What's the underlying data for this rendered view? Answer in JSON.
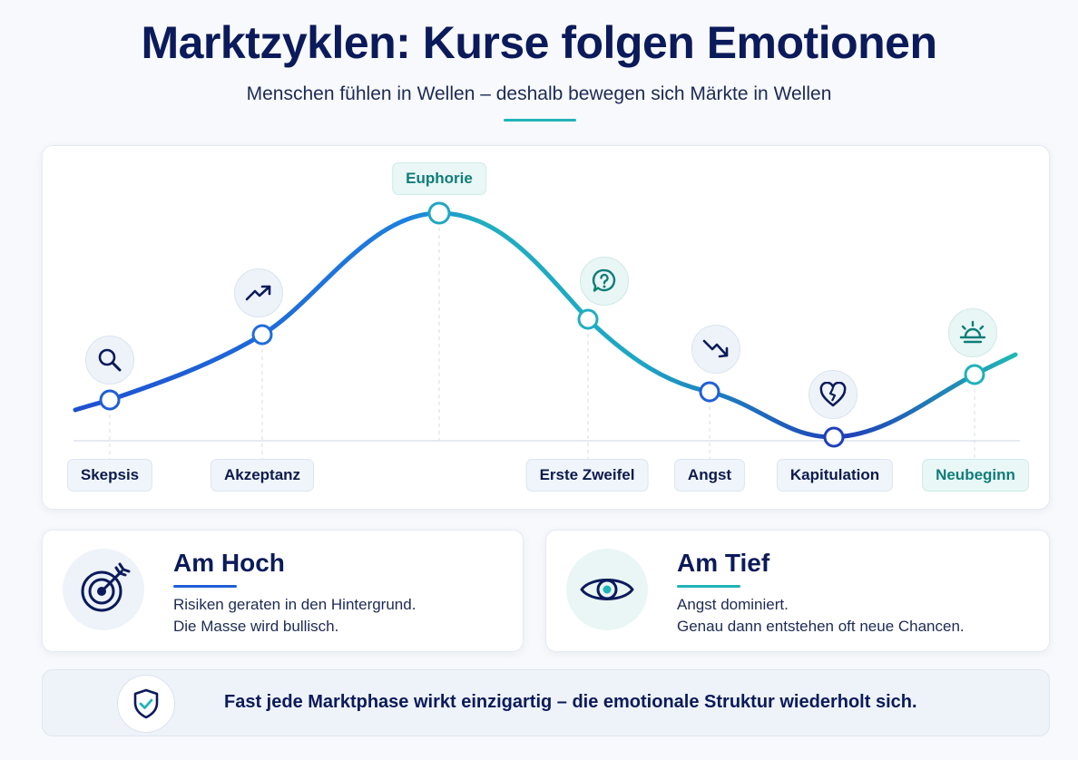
{
  "header": {
    "title": "Marktzyklen: Kurse folgen Emotionen",
    "subtitle": "Menschen fühlen in Wellen – deshalb bewegen sich Märkte in Wellen"
  },
  "cycle": {
    "phases": [
      {
        "label": "Skepsis",
        "icon": "magnifier-icon"
      },
      {
        "label": "Akzeptanz",
        "icon": "trend-up-icon"
      },
      {
        "label": "Euphorie",
        "icon": "none"
      },
      {
        "label": "Erste Zweifel",
        "icon": "question-bubble-icon"
      },
      {
        "label": "Angst",
        "icon": "trend-down-icon"
      },
      {
        "label": "Kapitulation",
        "icon": "broken-heart-icon"
      },
      {
        "label": "Neubeginn",
        "icon": "sunrise-icon"
      }
    ]
  },
  "cards": {
    "high": {
      "title": "Am Hoch",
      "line1": "Risiken geraten in den Hintergrund.",
      "line2": "Die Masse wird bullisch.",
      "icon": "target-icon"
    },
    "low": {
      "title": "Am Tief",
      "line1": "Angst dominiert.",
      "line2": "Genau dann entstehen oft neue Chancen.",
      "icon": "eye-icon"
    }
  },
  "footer": {
    "text": "Fast jede Marktphase wirkt einzigartig – die emotionale Struktur wiederholt sich.",
    "icon": "shield-check-icon"
  },
  "colors": {
    "navy": "#0b1a5a",
    "blue": "#1f5fd6",
    "teal": "#21b3b8"
  }
}
